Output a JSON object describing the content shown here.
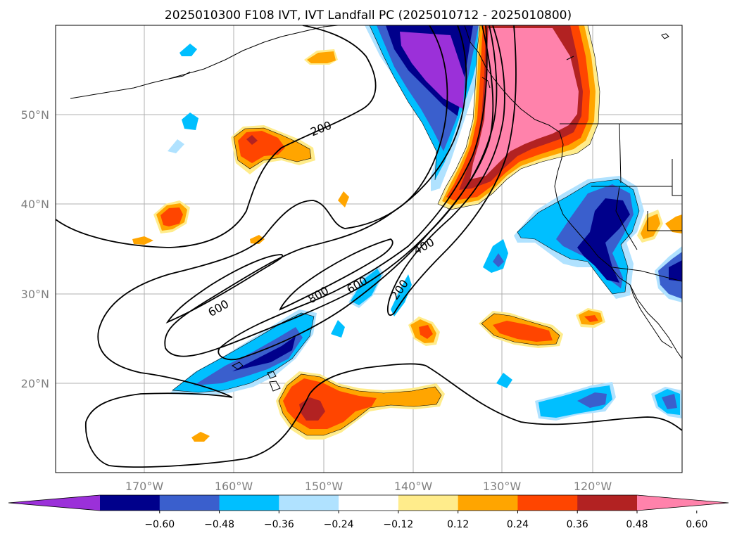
{
  "title": "2025010300 F108 IVT, IVT Landfall PC (2025010712 - 2025010800)",
  "map": {
    "lat_labels": [
      "50°N",
      "40°N",
      "30°N",
      "20°N"
    ],
    "lon_labels": [
      "170°W",
      "160°W",
      "150°W",
      "140°W",
      "130°W",
      "120°W"
    ],
    "contour_labels": [
      "200",
      "200",
      "400",
      "600",
      "600",
      "800"
    ],
    "line_color": "#000000",
    "grid_color": "#b0b0b0"
  },
  "colorbar": {
    "colors": [
      "#9b30d9",
      "#00008b",
      "#3a5fcd",
      "#00bfff",
      "#b0e2ff",
      "#ffffff",
      "#ffec8b",
      "#ffa500",
      "#ff4500",
      "#b22222",
      "#ff82ab"
    ],
    "tick_labels": [
      "−0.60",
      "−0.48",
      "−0.36",
      "−0.24",
      "−0.12",
      "0.12",
      "0.24",
      "0.36",
      "0.48",
      "0.60"
    ],
    "extend": "both"
  }
}
